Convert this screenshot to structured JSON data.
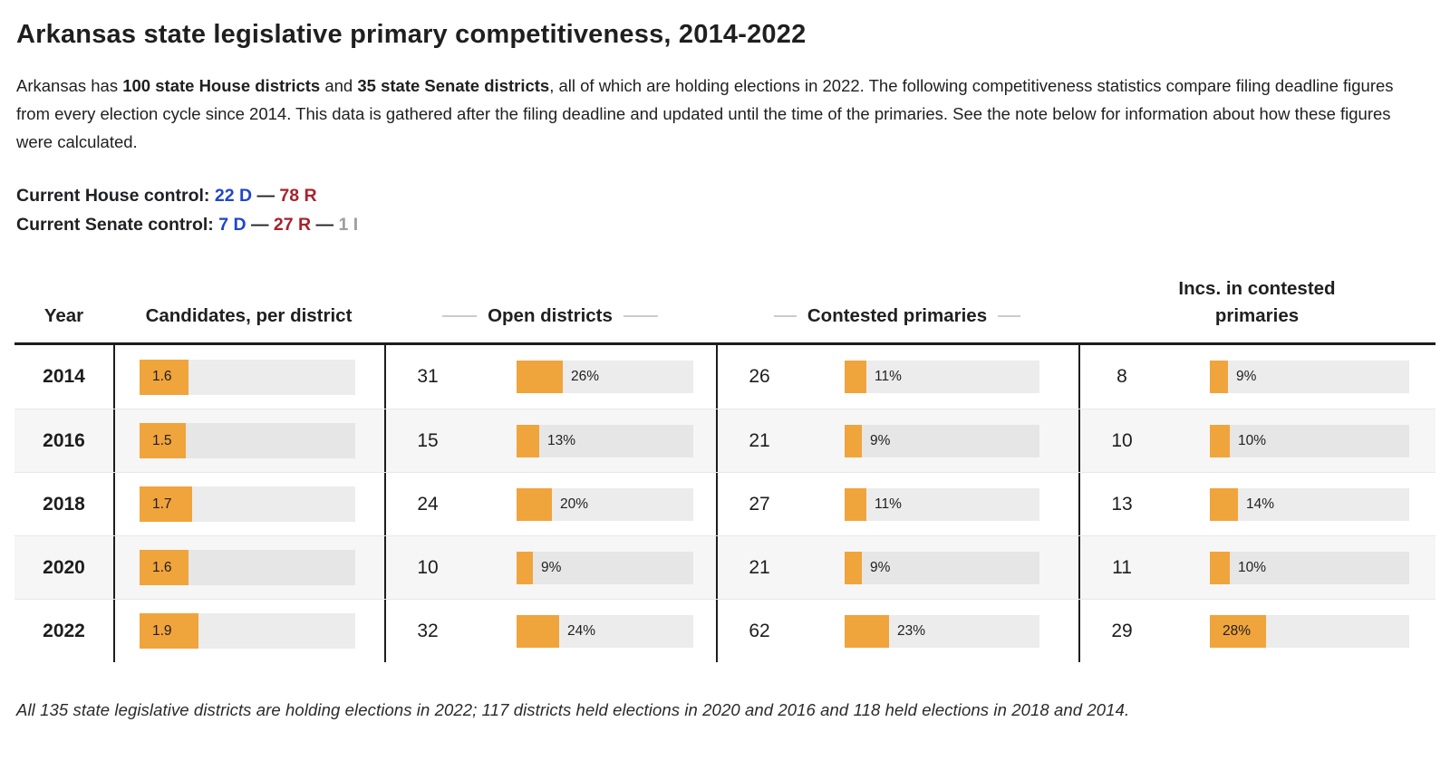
{
  "title": "Arkansas state legislative primary competitiveness, 2014-2022",
  "intro": {
    "pre": "Arkansas has ",
    "bold_house": "100 state House districts",
    "mid": " and ",
    "bold_senate": "35 state Senate districts",
    "post": ", all of which are holding elections in 2022. The following competitiveness statistics compare filing deadline figures from every election cycle since 2014. This data is gathered after the filing deadline and updated until the time of the primaries. See the note below for information about how these figures were calculated."
  },
  "control": {
    "house_label": "Current House control:",
    "house_d": "22 D",
    "house_r": "78 R",
    "senate_label": "Current Senate control:",
    "senate_d": "7 D",
    "senate_r": "27 R",
    "senate_i": "1 I",
    "dash": "—"
  },
  "colors": {
    "accent_orange": "#f0a43c",
    "bar_track_gray": "#ececec",
    "dem_blue": "#2045c8",
    "rep_red": "#a8222c",
    "ind_gray": "#9e9e9e"
  },
  "table": {
    "headers": {
      "year": "Year",
      "candidates": "Candidates, per district",
      "open": "Open districts",
      "contested": "Contested primaries",
      "incs": "Incs. in contested primaries"
    },
    "rows": [
      {
        "year": "2014",
        "candidates": {
          "value": 1.6,
          "label": "1.6"
        },
        "open": {
          "count": "31",
          "pct": 26,
          "label": "26%"
        },
        "contested": {
          "count": "26",
          "pct": 11,
          "label": "11%"
        },
        "incs": {
          "count": "8",
          "pct": 9,
          "label": "9%"
        }
      },
      {
        "year": "2016",
        "candidates": {
          "value": 1.5,
          "label": "1.5"
        },
        "open": {
          "count": "15",
          "pct": 13,
          "label": "13%"
        },
        "contested": {
          "count": "21",
          "pct": 9,
          "label": "9%"
        },
        "incs": {
          "count": "10",
          "pct": 10,
          "label": "10%"
        }
      },
      {
        "year": "2018",
        "candidates": {
          "value": 1.7,
          "label": "1.7"
        },
        "open": {
          "count": "24",
          "pct": 20,
          "label": "20%"
        },
        "contested": {
          "count": "27",
          "pct": 11,
          "label": "11%"
        },
        "incs": {
          "count": "13",
          "pct": 14,
          "label": "14%"
        }
      },
      {
        "year": "2020",
        "candidates": {
          "value": 1.6,
          "label": "1.6"
        },
        "open": {
          "count": "10",
          "pct": 9,
          "label": "9%"
        },
        "contested": {
          "count": "21",
          "pct": 9,
          "label": "9%"
        },
        "incs": {
          "count": "11",
          "pct": 10,
          "label": "10%"
        }
      },
      {
        "year": "2022",
        "candidates": {
          "value": 1.9,
          "label": "1.9"
        },
        "open": {
          "count": "32",
          "pct": 24,
          "label": "24%"
        },
        "contested": {
          "count": "62",
          "pct": 23,
          "label": "23%"
        },
        "incs": {
          "count": "29",
          "pct": 28,
          "label": "28%"
        }
      }
    ]
  },
  "footnote": "All 135 state legislative districts are holding elections in 2022; 117 districts held elections in 2020 and 2016 and 118 held elections in 2018 and 2014.",
  "chart_data": {
    "type": "table",
    "title": "Arkansas state legislative primary competitiveness, 2014-2022",
    "categories": [
      "2014",
      "2016",
      "2018",
      "2020",
      "2022"
    ],
    "series": [
      {
        "name": "Candidates, per district",
        "values": [
          1.6,
          1.5,
          1.7,
          1.6,
          1.9
        ]
      },
      {
        "name": "Open districts (count)",
        "values": [
          31,
          15,
          24,
          10,
          32
        ]
      },
      {
        "name": "Open districts (%)",
        "values": [
          26,
          13,
          20,
          9,
          24
        ]
      },
      {
        "name": "Contested primaries (count)",
        "values": [
          26,
          21,
          27,
          21,
          62
        ]
      },
      {
        "name": "Contested primaries (%)",
        "values": [
          11,
          9,
          11,
          9,
          23
        ]
      },
      {
        "name": "Incumbents in contested primaries (count)",
        "values": [
          8,
          10,
          13,
          11,
          29
        ]
      },
      {
        "name": "Incumbents in contested primaries (%)",
        "values": [
          9,
          10,
          14,
          10,
          28
        ]
      }
    ],
    "layout": {
      "bar_color": "#f0a43c",
      "track_color": "#ececec",
      "percent_axis_range": [
        0,
        100
      ],
      "candidates_axis_range": [
        0,
        7
      ]
    }
  }
}
